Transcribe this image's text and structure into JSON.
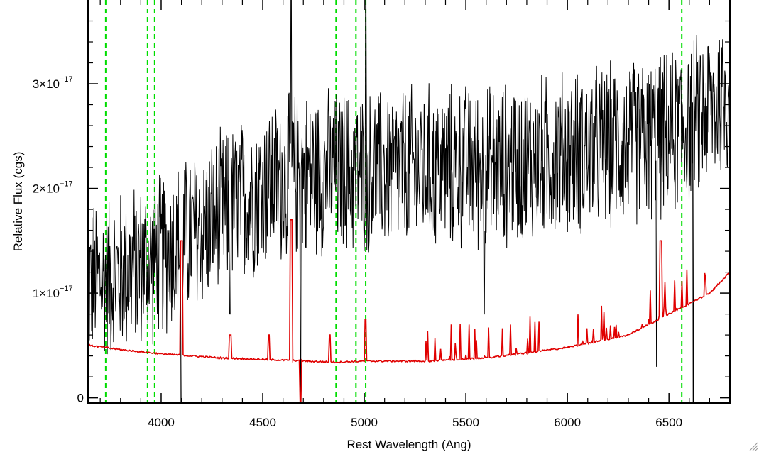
{
  "chart_data": {
    "type": "line",
    "title": "",
    "xlabel": "Rest Wavelength (Ang)",
    "ylabel": "Relative Flux (cgs)",
    "xlim": [
      3640,
      6800
    ],
    "ylim": [
      -5e-19,
      3.8e-17
    ],
    "grid": false,
    "x_ticks": [
      {
        "value": 4000,
        "label": "4000"
      },
      {
        "value": 4500,
        "label": "4500"
      },
      {
        "value": 5000,
        "label": "5000"
      },
      {
        "value": 5500,
        "label": "5500"
      },
      {
        "value": 6000,
        "label": "6000"
      },
      {
        "value": 6500,
        "label": "6500"
      }
    ],
    "y_ticks": [
      {
        "value": 0,
        "mant": "0",
        "exp": ""
      },
      {
        "value": 1e-17,
        "mant": "1×10",
        "exp": "−17"
      },
      {
        "value": 2e-17,
        "mant": "2×10",
        "exp": "−17"
      },
      {
        "value": 3e-17,
        "mant": "3×10",
        "exp": "−17"
      }
    ],
    "series": [
      {
        "color": "#000000",
        "style": "noisy observed spectrum",
        "continuum": [
          [
            3650,
            1.1e-17
          ],
          [
            3800,
            1.2e-17
          ],
          [
            3950,
            1.3e-17
          ],
          [
            4100,
            1.5e-17
          ],
          [
            4300,
            1.75e-17
          ],
          [
            4500,
            2e-17
          ],
          [
            4700,
            2.15e-17
          ],
          [
            5000,
            2.15e-17
          ],
          [
            5300,
            2.2e-17
          ],
          [
            5600,
            2.2e-17
          ],
          [
            5900,
            2.3e-17
          ],
          [
            6200,
            2.4e-17
          ],
          [
            6500,
            2.5e-17
          ],
          [
            6800,
            2.9e-17
          ]
        ],
        "features": [
          {
            "x": 4100,
            "y": -5e-19
          },
          {
            "x": 4340,
            "y": 8e-18
          },
          {
            "x": 4640,
            "y": 3.8e-17
          },
          {
            "x": 4686,
            "y": -5e-19
          },
          {
            "x": 5007,
            "y": 3.8e-17
          },
          {
            "x": 5590,
            "y": 8e-18
          },
          {
            "x": 6440,
            "y": 3e-18
          },
          {
            "x": 6620,
            "y": -5e-19
          }
        ]
      },
      {
        "color": "#e00000",
        "style": "model / noise spectrum",
        "continuum": [
          [
            3650,
            5e-18
          ],
          [
            3800,
            4.6e-18
          ],
          [
            4000,
            4.2e-18
          ],
          [
            4300,
            3.8e-18
          ],
          [
            4600,
            3.6e-18
          ],
          [
            4850,
            3.4e-18
          ],
          [
            5000,
            3.5e-18
          ],
          [
            5300,
            3.5e-18
          ],
          [
            5600,
            3.8e-18
          ],
          [
            6000,
            4.8e-18
          ],
          [
            6300,
            6e-18
          ],
          [
            6500,
            8e-18
          ],
          [
            6700,
            1e-17
          ],
          [
            6800,
            1.2e-17
          ]
        ],
        "features": [
          {
            "x": 4100,
            "y": 1.5e-17
          },
          {
            "x": 4340,
            "y": 6e-18
          },
          {
            "x": 4530,
            "y": 6e-18
          },
          {
            "x": 4640,
            "y": 1.7e-17
          },
          {
            "x": 4686,
            "y": -5e-19
          },
          {
            "x": 4830,
            "y": 6e-18
          },
          {
            "x": 5007,
            "y": 7.5e-18
          },
          {
            "x": 6460,
            "y": 1.5e-17
          }
        ]
      }
    ],
    "reference_lines": {
      "color": "#00dd00",
      "style": "dashed",
      "x": [
        3727,
        3933,
        3968,
        4861,
        4959,
        5007,
        6563
      ]
    }
  }
}
